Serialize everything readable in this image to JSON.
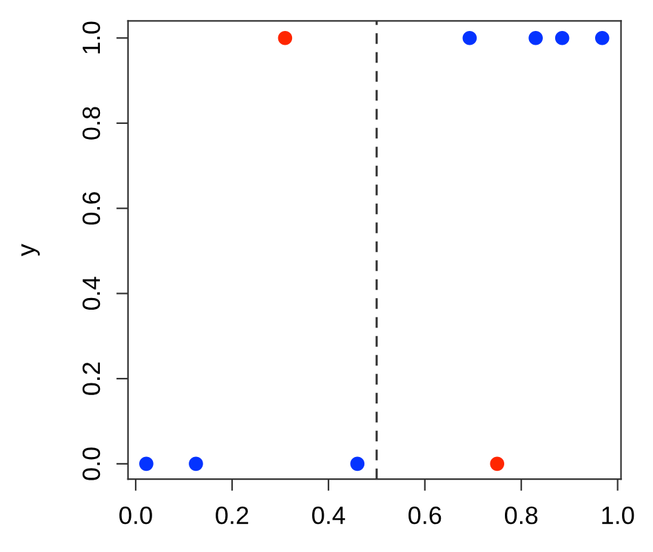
{
  "chart_data": {
    "type": "scatter",
    "ylabel": "y",
    "series": [
      {
        "color": "#0433ff",
        "x": [
          0.022,
          0.125,
          0.46,
          0.693,
          0.83,
          0.885,
          0.968
        ],
        "values": [
          0,
          0,
          0,
          1,
          1,
          1,
          1
        ]
      },
      {
        "color": "#ff2600",
        "x": [
          0.31,
          0.75
        ],
        "values": [
          1,
          0
        ]
      }
    ],
    "xlim": [
      -0.016,
      1.007
    ],
    "ylim": [
      -0.036,
      1.04
    ],
    "xticks": [
      {
        "value": 0,
        "label": "0.0"
      },
      0.2,
      0.4,
      0.6,
      0.8,
      {
        "value": 1,
        "label": "1.0"
      }
    ],
    "yticks": [
      {
        "value": 0,
        "label": "0.0"
      },
      0.2,
      0.4,
      0.6,
      0.8,
      {
        "value": 1,
        "label": "1.0"
      }
    ],
    "ref_lines": [
      {
        "axis": "x",
        "value": 0.5,
        "line_style": "dashed"
      }
    ],
    "marker": "circle",
    "grid": false,
    "legend": false
  }
}
